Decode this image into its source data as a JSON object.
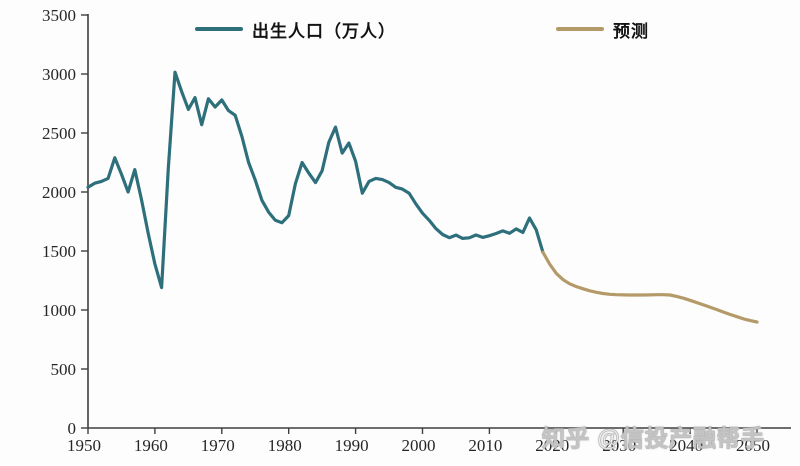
{
  "chart_data": {
    "type": "line",
    "title": "",
    "xlabel": "",
    "ylabel": "",
    "xlim": [
      1950,
      2050
    ],
    "ylim": [
      0,
      3500
    ],
    "x_ticks": [
      1950,
      1960,
      1970,
      1980,
      1990,
      2000,
      2010,
      2020,
      2030,
      2040,
      2050
    ],
    "y_ticks": [
      0,
      500,
      1000,
      1500,
      2000,
      2500,
      3000,
      3500
    ],
    "grid": false,
    "legend_position": "top",
    "series": [
      {
        "name": "出生人口（万人）",
        "color": "#2e6f7c",
        "points": [
          [
            1950,
            2040
          ],
          [
            1951,
            2075
          ],
          [
            1952,
            2090
          ],
          [
            1953,
            2115
          ],
          [
            1954,
            2290
          ],
          [
            1955,
            2150
          ],
          [
            1956,
            2000
          ],
          [
            1957,
            2190
          ],
          [
            1958,
            1935
          ],
          [
            1959,
            1650
          ],
          [
            1960,
            1390
          ],
          [
            1961,
            1190
          ],
          [
            1962,
            2200
          ],
          [
            1963,
            3015
          ],
          [
            1964,
            2850
          ],
          [
            1965,
            2700
          ],
          [
            1966,
            2800
          ],
          [
            1967,
            2570
          ],
          [
            1968,
            2790
          ],
          [
            1969,
            2720
          ],
          [
            1970,
            2780
          ],
          [
            1971,
            2690
          ],
          [
            1972,
            2650
          ],
          [
            1973,
            2470
          ],
          [
            1974,
            2250
          ],
          [
            1975,
            2100
          ],
          [
            1976,
            1930
          ],
          [
            1977,
            1830
          ],
          [
            1978,
            1760
          ],
          [
            1979,
            1740
          ],
          [
            1980,
            1800
          ],
          [
            1981,
            2070
          ],
          [
            1982,
            2250
          ],
          [
            1983,
            2160
          ],
          [
            1984,
            2080
          ],
          [
            1985,
            2180
          ],
          [
            1986,
            2420
          ],
          [
            1987,
            2550
          ],
          [
            1988,
            2330
          ],
          [
            1989,
            2415
          ],
          [
            1990,
            2260
          ],
          [
            1991,
            1990
          ],
          [
            1992,
            2090
          ],
          [
            1993,
            2115
          ],
          [
            1994,
            2105
          ],
          [
            1995,
            2080
          ],
          [
            1996,
            2040
          ],
          [
            1997,
            2025
          ],
          [
            1998,
            1990
          ],
          [
            1999,
            1900
          ],
          [
            2000,
            1820
          ],
          [
            2001,
            1760
          ],
          [
            2002,
            1690
          ],
          [
            2003,
            1640
          ],
          [
            2004,
            1613
          ],
          [
            2005,
            1635
          ],
          [
            2006,
            1607
          ],
          [
            2007,
            1612
          ],
          [
            2008,
            1636
          ],
          [
            2009,
            1615
          ],
          [
            2010,
            1630
          ],
          [
            2011,
            1648
          ],
          [
            2012,
            1670
          ],
          [
            2013,
            1650
          ],
          [
            2014,
            1687
          ],
          [
            2015,
            1658
          ],
          [
            2016,
            1780
          ],
          [
            2017,
            1680
          ],
          [
            2018,
            1490
          ]
        ]
      },
      {
        "name": "预测",
        "color": "#b49a68",
        "points": [
          [
            2018,
            1490
          ],
          [
            2019,
            1390
          ],
          [
            2020,
            1310
          ],
          [
            2021,
            1258
          ],
          [
            2022,
            1222
          ],
          [
            2023,
            1198
          ],
          [
            2024,
            1180
          ],
          [
            2025,
            1163
          ],
          [
            2026,
            1150
          ],
          [
            2027,
            1140
          ],
          [
            2028,
            1133
          ],
          [
            2029,
            1130
          ],
          [
            2030,
            1128
          ],
          [
            2031,
            1127
          ],
          [
            2032,
            1127
          ],
          [
            2033,
            1127
          ],
          [
            2034,
            1128
          ],
          [
            2035,
            1130
          ],
          [
            2036,
            1130
          ],
          [
            2037,
            1127
          ],
          [
            2038,
            1115
          ],
          [
            2039,
            1100
          ],
          [
            2040,
            1082
          ],
          [
            2041,
            1063
          ],
          [
            2042,
            1043
          ],
          [
            2043,
            1023
          ],
          [
            2044,
            1003
          ],
          [
            2045,
            982
          ],
          [
            2046,
            962
          ],
          [
            2047,
            943
          ],
          [
            2048,
            925
          ],
          [
            2049,
            910
          ],
          [
            2050,
            898
          ]
        ]
      }
    ]
  },
  "legend": {
    "birth_label": "出生人口（万人）",
    "forecast_label": "预测"
  },
  "watermark": "知乎 @信投产融帮手",
  "axis": {
    "line_color": "#3f3f3f",
    "label_color": "#262626"
  },
  "background": "#fdfdfd"
}
